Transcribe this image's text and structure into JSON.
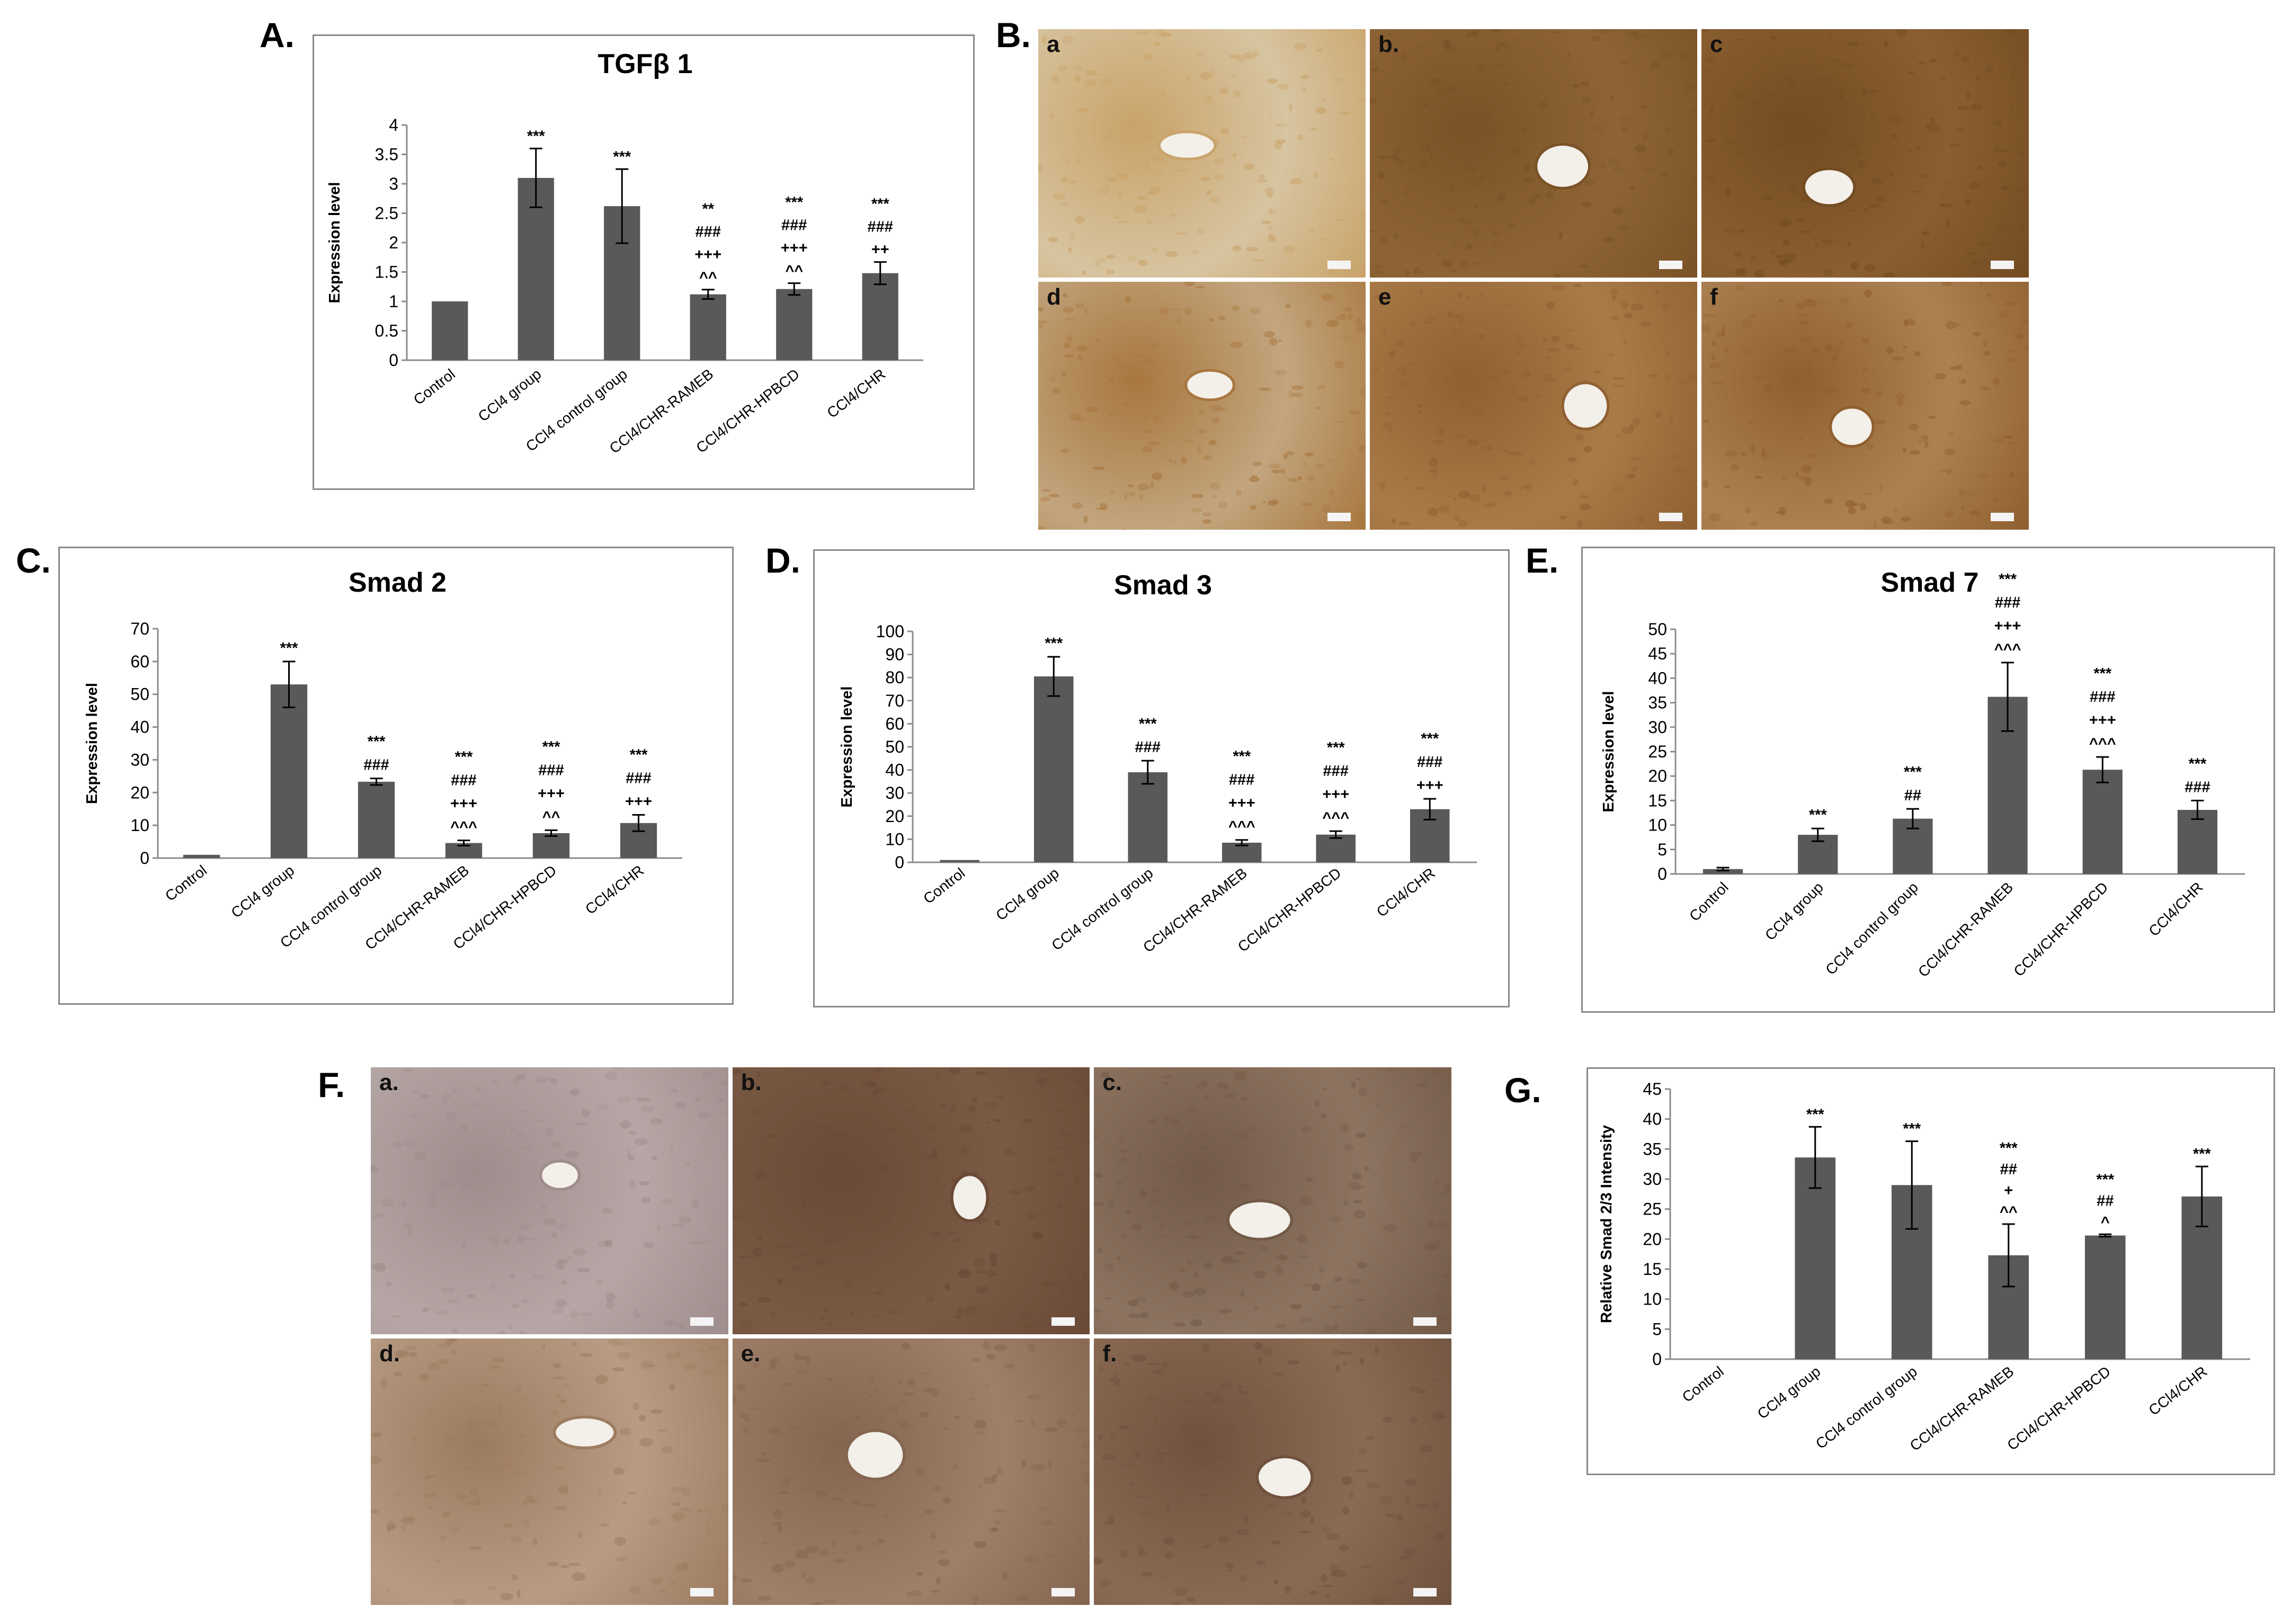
{
  "panels": {
    "A": "A.",
    "B": "B.",
    "C": "C.",
    "D": "D.",
    "E": "E.",
    "F": "F.",
    "G": "G."
  },
  "micrographs": {
    "B": [
      {
        "label": "a",
        "bg": "#d7c4a0",
        "tint": "#c9a36a"
      },
      {
        "label": "b.",
        "bg": "#8e6436",
        "tint": "#7a5227"
      },
      {
        "label": "c",
        "bg": "#8a5e30",
        "tint": "#734c22"
      },
      {
        "label": "d",
        "bg": "#c3a57e",
        "tint": "#a8773f"
      },
      {
        "label": "e",
        "bg": "#a97b46",
        "tint": "#8f6032"
      },
      {
        "label": "f",
        "bg": "#ad8253",
        "tint": "#8f5f2e"
      }
    ],
    "F": [
      {
        "label": "a.",
        "bg": "#b6a7a6",
        "tint": "#9e8d8c"
      },
      {
        "label": "b.",
        "bg": "#7a5a44",
        "tint": "#6a4a36"
      },
      {
        "label": "c.",
        "bg": "#8c7461",
        "tint": "#735a48"
      },
      {
        "label": "d.",
        "bg": "#b79b84",
        "tint": "#9c7c60"
      },
      {
        "label": "e.",
        "bg": "#9e7f69",
        "tint": "#84654f"
      },
      {
        "label": "f.",
        "bg": "#8a6a53",
        "tint": "#6f523e"
      }
    ]
  },
  "chart_data": [
    {
      "id": "A",
      "type": "bar",
      "title": "TGFβ 1",
      "xlabel": "",
      "ylabel": "Expression level",
      "categories": [
        "Control",
        "CCl4 group",
        "CCl4 control group",
        "CCl4/CHR-RAMEB",
        "CCl4/CHR-HPBCD",
        "CCl4/CHR"
      ],
      "values": [
        1.0,
        3.1,
        2.62,
        1.12,
        1.21,
        1.48
      ],
      "errors": [
        0,
        0.5,
        0.63,
        0.08,
        0.1,
        0.19
      ],
      "ylim": [
        0,
        4
      ],
      "yticks": [
        "0",
        "0.5",
        "1",
        "1.5",
        "2",
        "2.5",
        "3",
        "3.5",
        "4"
      ],
      "annotations": [
        [],
        [
          "***"
        ],
        [
          "***"
        ],
        [
          "**",
          "###",
          "+++",
          "^^"
        ],
        [
          "***",
          "###",
          "+++",
          "^^"
        ],
        [
          "***",
          "###",
          "++"
        ]
      ],
      "bar_color": "#595959",
      "grid": false
    },
    {
      "id": "C",
      "type": "bar",
      "title": "Smad 2",
      "xlabel": "",
      "ylabel": "Expression level",
      "categories": [
        "Control",
        "CCl4 group",
        "CCl4 control group",
        "CCl4/CHR-RAMEB",
        "CCl4/CHR-HPBCD",
        "CCl4/CHR"
      ],
      "values": [
        1.0,
        53,
        23.3,
        4.6,
        7.6,
        10.7
      ],
      "errors": [
        0,
        7,
        1.0,
        0.8,
        0.9,
        2.5
      ],
      "ylim": [
        0,
        70
      ],
      "yticks": [
        "0",
        "10",
        "20",
        "30",
        "40",
        "50",
        "60",
        "70"
      ],
      "annotations": [
        [],
        [
          "***"
        ],
        [
          "***",
          "###"
        ],
        [
          "***",
          "###",
          "+++",
          "^^^"
        ],
        [
          "***",
          "###",
          "+++",
          "^^"
        ],
        [
          "***",
          "###",
          "+++"
        ]
      ],
      "bar_color": "#595959",
      "grid": false
    },
    {
      "id": "D",
      "type": "bar",
      "title": "Smad 3",
      "xlabel": "",
      "ylabel": "Expression level",
      "categories": [
        "Control",
        "CCl4 group",
        "CCl4 control group",
        "CCl4/CHR-RAMEB",
        "CCl4/CHR-HPBCD",
        "CCl4/CHR"
      ],
      "values": [
        1.0,
        80.5,
        39,
        8.5,
        12,
        23
      ],
      "errors": [
        0,
        8.5,
        5,
        1.2,
        1.5,
        4.5
      ],
      "ylim": [
        0,
        100
      ],
      "yticks": [
        "0",
        "10",
        "20",
        "30",
        "40",
        "50",
        "60",
        "70",
        "80",
        "90",
        "100"
      ],
      "annotations": [
        [],
        [
          "***"
        ],
        [
          "***",
          "###"
        ],
        [
          "***",
          "###",
          "+++",
          "^^^"
        ],
        [
          "***",
          "###",
          "+++",
          "^^^"
        ],
        [
          "***",
          "###",
          "+++"
        ]
      ],
      "bar_color": "#595959",
      "grid": false
    },
    {
      "id": "E",
      "type": "bar",
      "title": "Smad 7",
      "xlabel": "",
      "ylabel": "Expression level",
      "categories": [
        "Control",
        "CCl4 group",
        "CCl4 control group",
        "CCl4/CHR-RAMEB",
        "CCl4/CHR-HPBCD",
        "CCl4/CHR"
      ],
      "values": [
        1.0,
        8.0,
        11.3,
        36.2,
        21.3,
        13.1
      ],
      "errors": [
        0.3,
        1.3,
        2.0,
        7.0,
        2.6,
        1.9
      ],
      "ylim": [
        0,
        50
      ],
      "yticks": [
        "0",
        "5",
        "10",
        "15",
        "20",
        "25",
        "30",
        "35",
        "40",
        "45",
        "50"
      ],
      "annotations": [
        [],
        [
          "***"
        ],
        [
          "***",
          "##"
        ],
        [
          "***",
          "###",
          "+++",
          "^^^"
        ],
        [
          "***",
          "###",
          "+++",
          "^^^"
        ],
        [
          "***",
          "###"
        ]
      ],
      "bar_color": "#595959",
      "grid": false
    },
    {
      "id": "G",
      "type": "bar",
      "title": "",
      "xlabel": "",
      "ylabel": "Relative  Smad 2/3 Intensity",
      "categories": [
        "Control",
        "CCl4 group",
        "CCl4 control group",
        "CCl4/CHR-RAMEB",
        "CCl4/CHR-HPBCD",
        "CCl4/CHR"
      ],
      "values": [
        0,
        33.6,
        29,
        17.3,
        20.6,
        27.1
      ],
      "errors": [
        0,
        5.1,
        7.3,
        5.2,
        0.2,
        5.0
      ],
      "ylim": [
        0,
        45
      ],
      "yticks": [
        "0",
        "5",
        "10",
        "15",
        "20",
        "25",
        "30",
        "35",
        "40",
        "45"
      ],
      "annotations": [
        [],
        [
          "***"
        ],
        [
          "***"
        ],
        [
          "***",
          "##",
          "+",
          "^^"
        ],
        [
          "***",
          "##",
          "^"
        ],
        [
          "***"
        ]
      ],
      "bar_color": "#595959",
      "grid": false
    }
  ]
}
